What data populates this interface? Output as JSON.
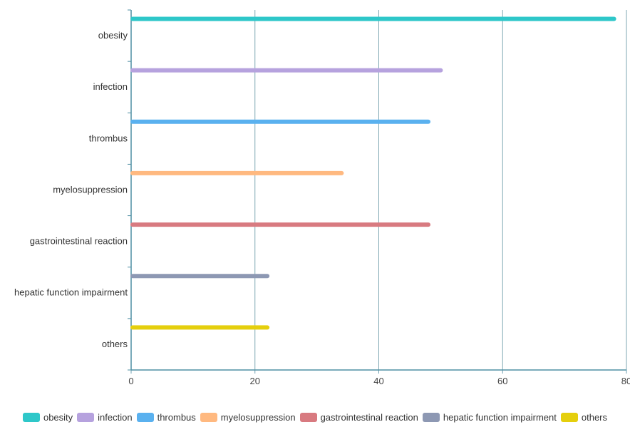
{
  "chart_data": {
    "type": "bar",
    "orientation": "horizontal",
    "categories": [
      "obesity",
      "infection",
      "thrombus",
      "myelosuppression",
      "gastrointestinal reaction",
      "hepatic function impairment",
      "others"
    ],
    "values": [
      78,
      50,
      48,
      34,
      48,
      22,
      22
    ],
    "series_colors": [
      "#2ec7c9",
      "#b6a2de",
      "#5ab1ef",
      "#ffb980",
      "#d87a80",
      "#8d98b3",
      "#e5cf0d"
    ],
    "xlim": [
      0,
      80
    ],
    "xticks": [
      "0",
      "20",
      "40",
      "60",
      "80"
    ],
    "grid": true,
    "legend": {
      "position": "bottom",
      "items": [
        "obesity",
        "infection",
        "thrombus",
        "myelosuppression",
        "gastrointestinal reaction",
        "hepatic function impairment",
        "others"
      ]
    },
    "title": "",
    "xlabel": "",
    "ylabel": ""
  }
}
